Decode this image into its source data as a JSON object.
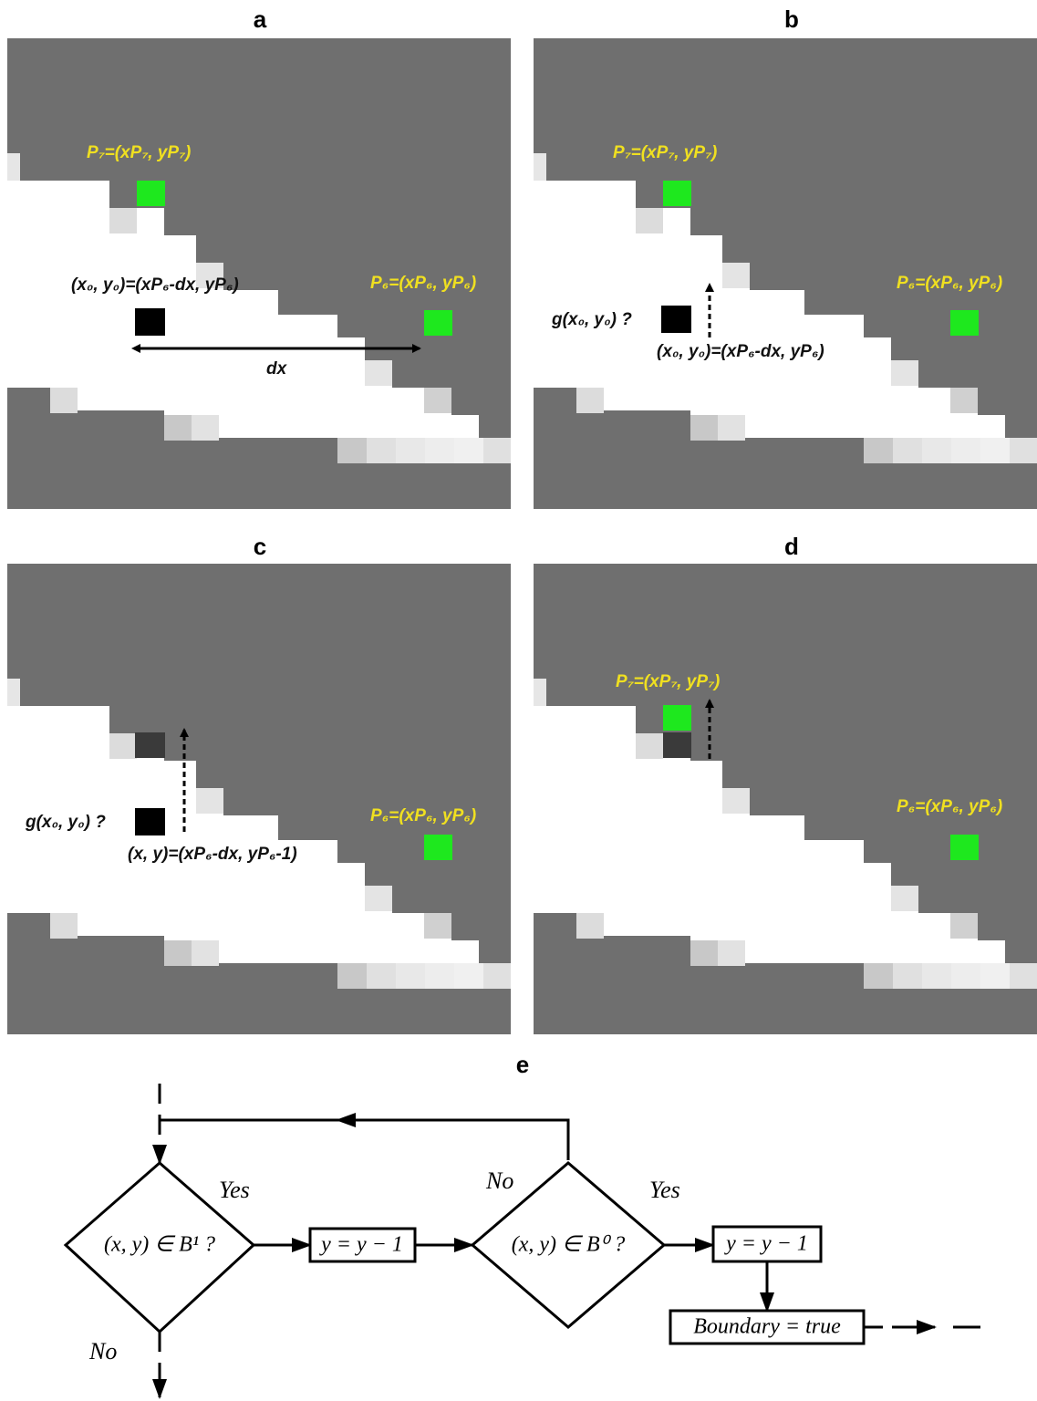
{
  "panels": [
    {
      "label": "a",
      "annotations": [
        "P₇=(xP₇, yP₇)",
        "(x₀, y₀)=(xP₆-dx, yP₆)",
        "P₆=(xP₆, yP₆)",
        "dx"
      ]
    },
    {
      "label": "b",
      "annotations": [
        "P₇=(xP₇, yP₇)",
        "P₆=(xP₆, yP₆)",
        "g(x₀, y₀) ?",
        "(x₀, y₀)=(xP₆-dx, yP₆)"
      ]
    },
    {
      "label": "c",
      "annotations": [
        "g(x₀, y₀) ?",
        "P₆=(xP₆, yP₆)",
        "(x, y)=(xP₆-dx, yP₆-1)"
      ]
    },
    {
      "label": "d",
      "annotations": [
        "P₇=(xP₇, yP₇)",
        "P₆=(xP₆, yP₆)"
      ]
    }
  ],
  "flowchart": {
    "label": "e",
    "nodes": [
      "(x, y) ∈ B¹ ?",
      "y = y − 1",
      "(x, y) ∈ B⁰ ?",
      "y = y − 1",
      "Boundary = true"
    ],
    "edges": [
      "Yes",
      "No",
      "No",
      "Yes"
    ]
  }
}
